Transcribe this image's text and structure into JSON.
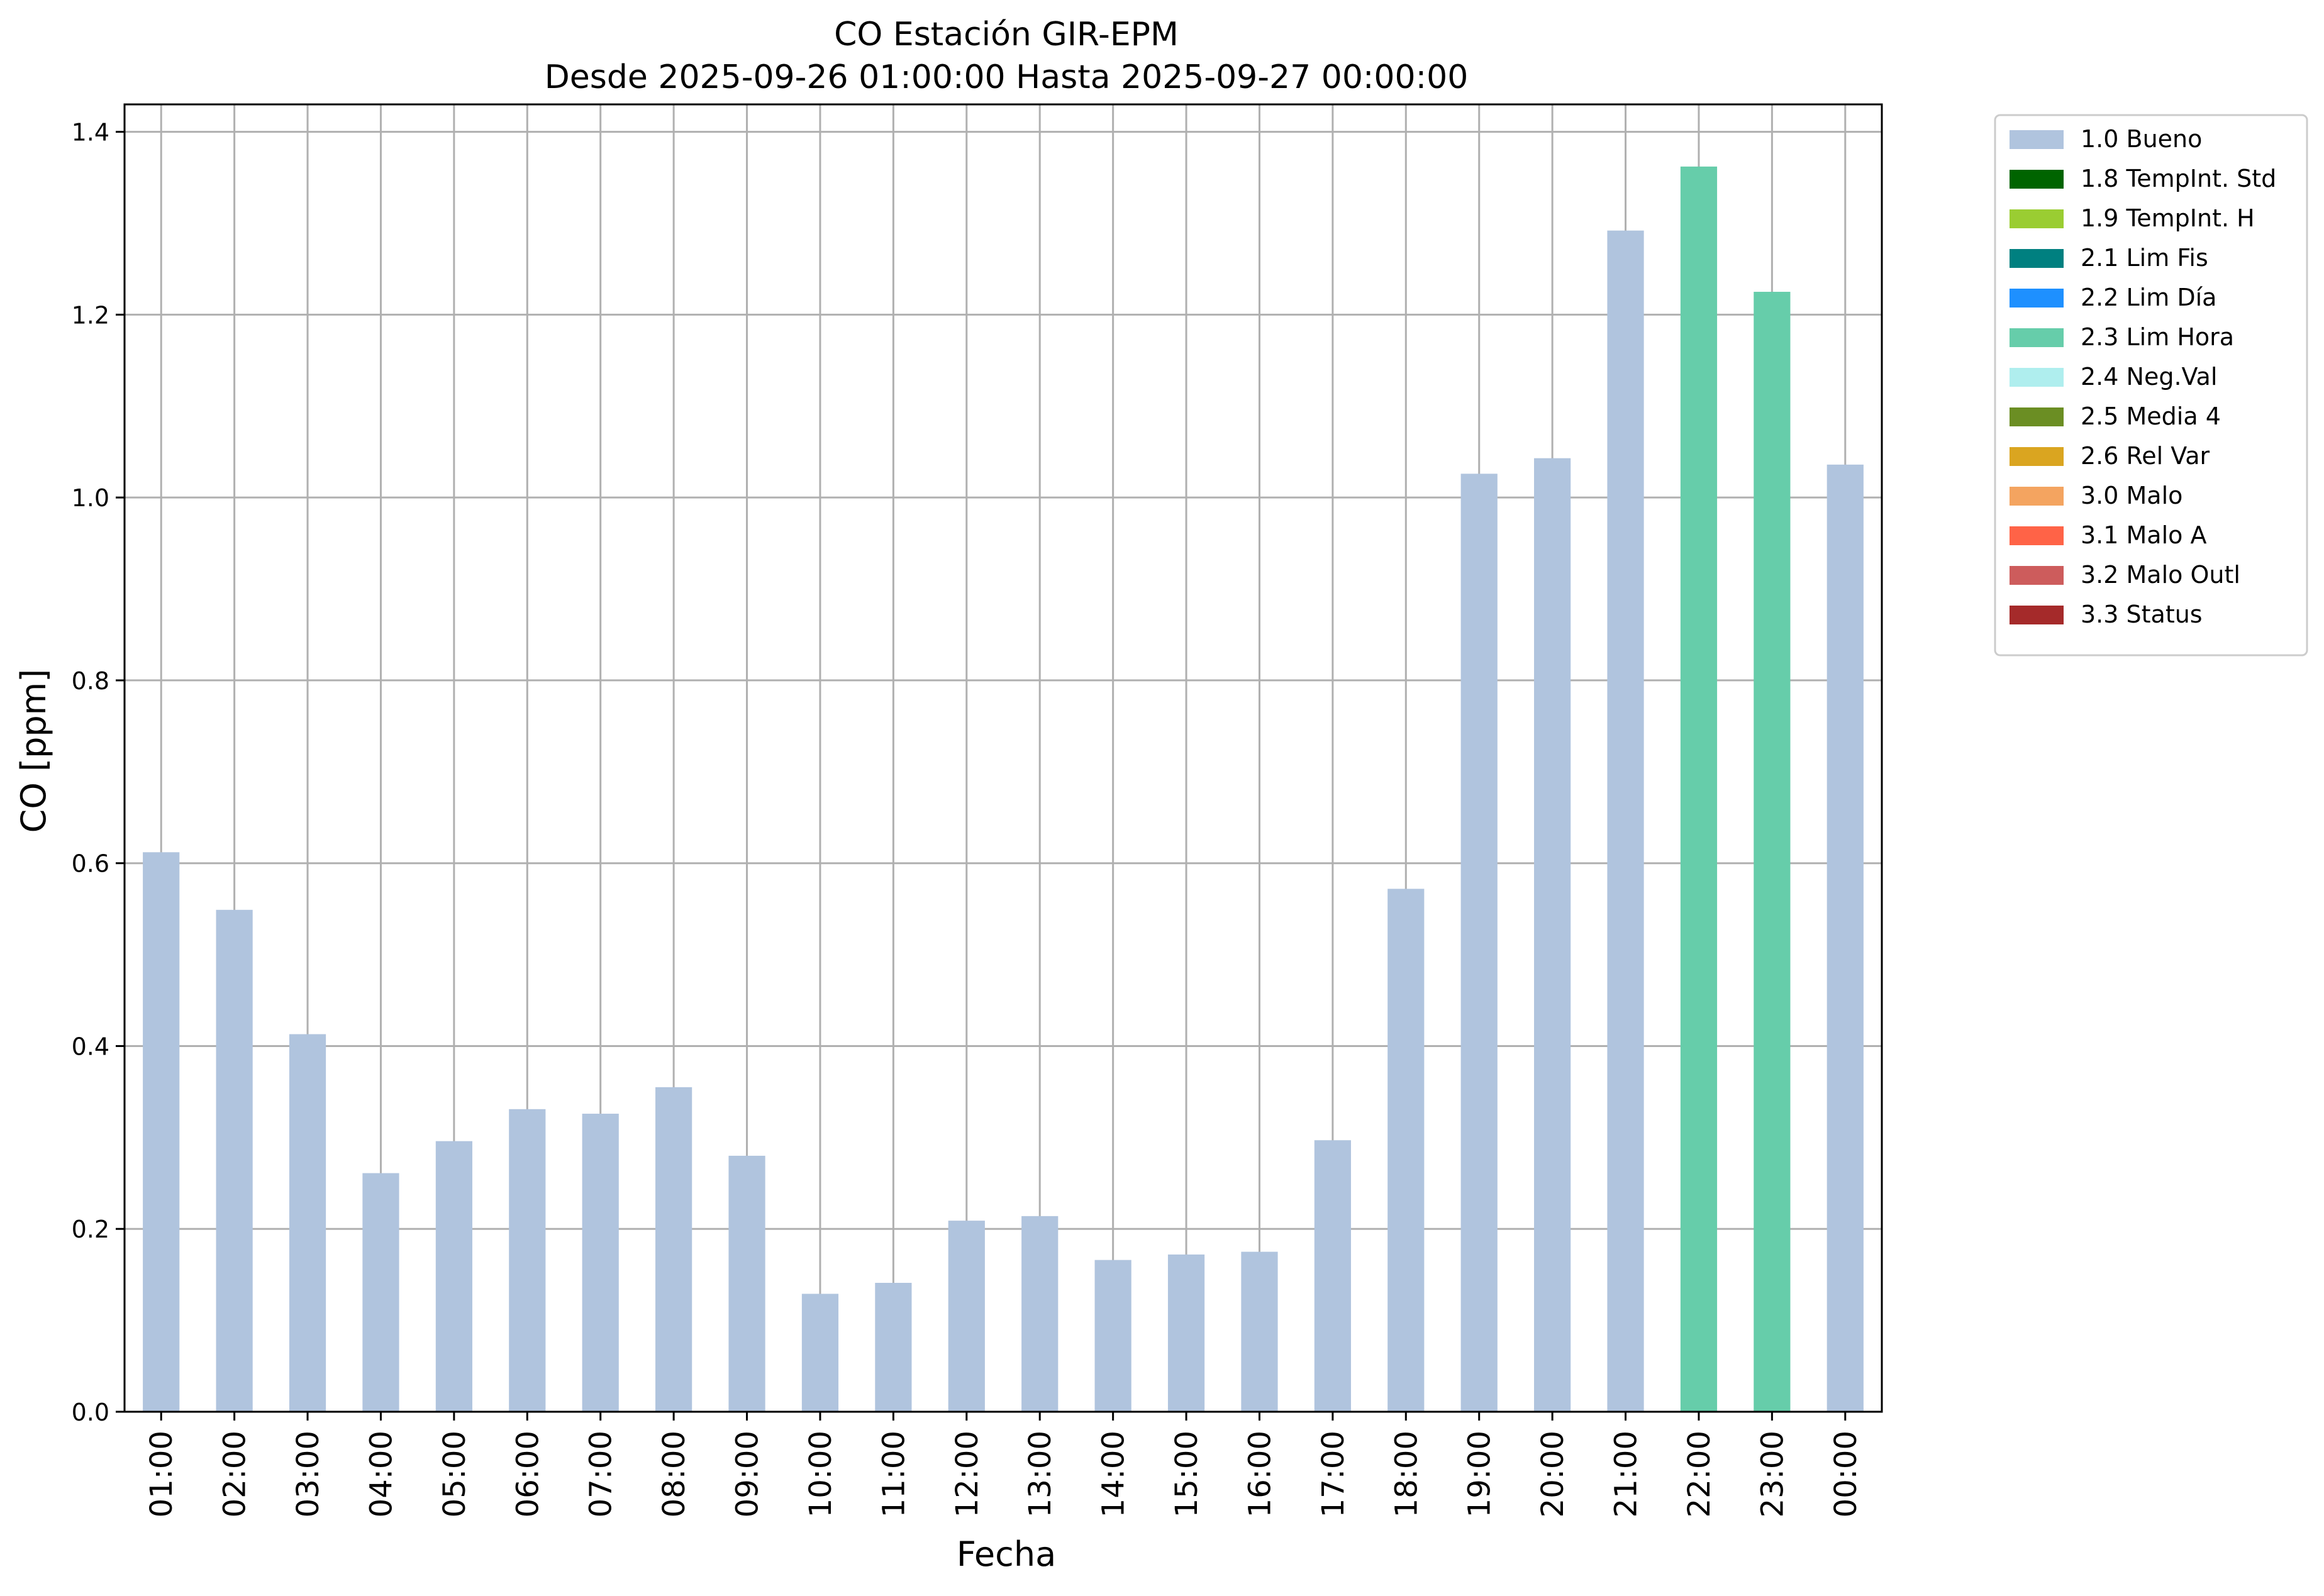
{
  "chart_data": {
    "type": "bar",
    "title": "CO Estación GIR-EPM",
    "subtitle": "Desde 2025-09-26 01:00:00 Hasta 2025-09-27 00:00:00",
    "xlabel": "Fecha",
    "ylabel": "CO [ppm]",
    "ylim": [
      0,
      1.43
    ],
    "yticks": [
      "0.0",
      "0.2",
      "0.4",
      "0.6",
      "0.8",
      "1.0",
      "1.2",
      "1.4"
    ],
    "ytick_values": [
      0,
      0.2,
      0.4,
      0.6,
      0.8,
      1.0,
      1.2,
      1.4
    ],
    "grid": true,
    "legend_position": "outside-top-right",
    "categories": [
      "01:00",
      "02:00",
      "03:00",
      "04:00",
      "05:00",
      "06:00",
      "07:00",
      "08:00",
      "09:00",
      "10:00",
      "11:00",
      "12:00",
      "13:00",
      "14:00",
      "15:00",
      "16:00",
      "17:00",
      "18:00",
      "19:00",
      "20:00",
      "21:00",
      "22:00",
      "23:00",
      "00:00"
    ],
    "values": [
      0.612,
      0.549,
      0.413,
      0.261,
      0.296,
      0.331,
      0.326,
      0.355,
      0.28,
      0.129,
      0.141,
      0.209,
      0.214,
      0.166,
      0.172,
      0.175,
      0.297,
      0.572,
      1.026,
      1.043,
      1.292,
      1.362,
      1.225,
      1.036
    ],
    "bar_flags": [
      "1.0 Bueno",
      "1.0 Bueno",
      "1.0 Bueno",
      "1.0 Bueno",
      "1.0 Bueno",
      "1.0 Bueno",
      "1.0 Bueno",
      "1.0 Bueno",
      "1.0 Bueno",
      "1.0 Bueno",
      "1.0 Bueno",
      "1.0 Bueno",
      "1.0 Bueno",
      "1.0 Bueno",
      "1.0 Bueno",
      "1.0 Bueno",
      "1.0 Bueno",
      "1.0 Bueno",
      "1.0 Bueno",
      "1.0 Bueno",
      "1.0 Bueno",
      "2.3 Lim Hora",
      "2.3 Lim Hora",
      "1.0 Bueno"
    ],
    "legend": [
      {
        "label": "1.0 Bueno",
        "color": "#b0c4de"
      },
      {
        "label": "1.8 TempInt. Std",
        "color": "#006400"
      },
      {
        "label": "1.9 TempInt. H",
        "color": "#9acd32"
      },
      {
        "label": "2.1 Lim Fis",
        "color": "#008080"
      },
      {
        "label": "2.2 Lim Día",
        "color": "#1e90ff"
      },
      {
        "label": "2.3 Lim Hora",
        "color": "#66cdaa"
      },
      {
        "label": "2.4 Neg.Val",
        "color": "#afeeee"
      },
      {
        "label": "2.5 Media 4",
        "color": "#6b8e23"
      },
      {
        "label": "2.6 Rel Var",
        "color": "#daa520"
      },
      {
        "label": "3.0 Malo",
        "color": "#f4a460"
      },
      {
        "label": "3.1 Malo A",
        "color": "#ff6347"
      },
      {
        "label": "3.2 Malo Outl",
        "color": "#cd5c5c"
      },
      {
        "label": "3.3 Status",
        "color": "#a52a2a"
      }
    ]
  }
}
